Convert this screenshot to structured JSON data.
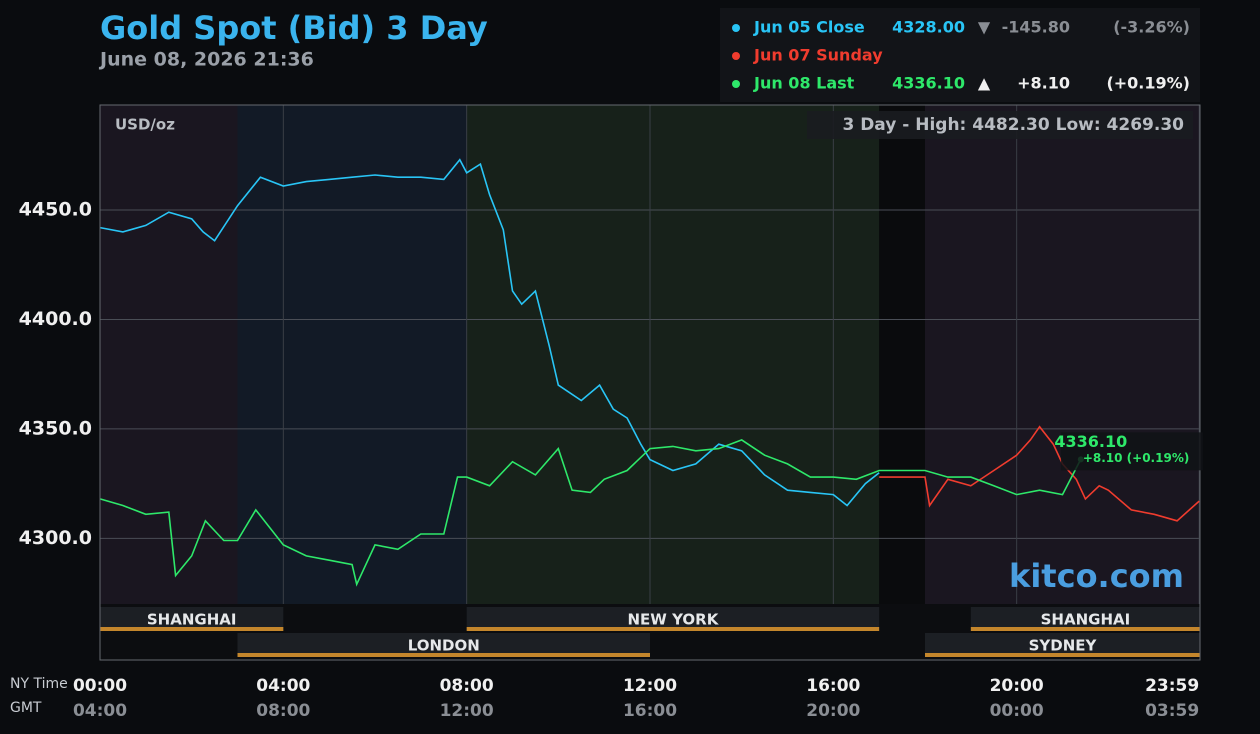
{
  "chart_data": {
    "type": "line",
    "title": "Gold Spot (Bid) 3 Day",
    "subtitle": "June 08, 2026 21:36",
    "y_label": "USD/oz",
    "range_note": "3 Day - High: 4482.30  Low: 4269.30",
    "watermark": "kitco.com",
    "last_label": "4336.10",
    "last_change_label": "+8.10 (+0.19%)",
    "x_row_labels": [
      "NY Time",
      "GMT"
    ],
    "xlim": [
      0,
      24
    ],
    "ylim": [
      4270,
      4498
    ],
    "yticks": [
      {
        "value": 4300,
        "label": "4300.0"
      },
      {
        "value": 4350,
        "label": "4350.0"
      },
      {
        "value": 4400,
        "label": "4400.0"
      },
      {
        "value": 4450,
        "label": "4450.0"
      }
    ],
    "xticks": [
      {
        "value": 0,
        "label": "00:00"
      },
      {
        "value": 4,
        "label": "04:00"
      },
      {
        "value": 8,
        "label": "08:00"
      },
      {
        "value": 12,
        "label": "12:00"
      },
      {
        "value": 16,
        "label": "16:00"
      },
      {
        "value": 20,
        "label": "20:00"
      },
      {
        "value": 23.983,
        "label": "23:59"
      }
    ],
    "xticks_gmt": [
      {
        "value": 0,
        "label": "04:00"
      },
      {
        "value": 4,
        "label": "08:00"
      },
      {
        "value": 8,
        "label": "12:00"
      },
      {
        "value": 12,
        "label": "16:00"
      },
      {
        "value": 16,
        "label": "20:00"
      },
      {
        "value": 20,
        "label": "00:00"
      },
      {
        "value": 23.983,
        "label": "03:59"
      }
    ],
    "grid": true,
    "sessions": [
      "SHANGHAI",
      "LONDON",
      "NEW YORK",
      "SHANGHAI",
      "SYDNEY"
    ],
    "series": [
      {
        "name": "Jun 05 Close",
        "color": "#29c5f6",
        "price_label": "4328.00",
        "arrow": "▼",
        "change_label": "-145.80",
        "pct_label": "(-3.26%)",
        "x": [
          0,
          0.5,
          1,
          1.5,
          2,
          2.25,
          2.5,
          3,
          3.5,
          4,
          4.5,
          5,
          5.5,
          6,
          6.5,
          7,
          7.5,
          7.85,
          8,
          8.3,
          8.5,
          8.8,
          9,
          9.2,
          9.5,
          9.8,
          10,
          10.5,
          10.9,
          11.2,
          11.5,
          11.8,
          12,
          12.5,
          13,
          13.5,
          14,
          14.5,
          15,
          15.5,
          16,
          16.3,
          16.7,
          17
        ],
        "values": [
          4442,
          4440,
          4443,
          4449,
          4446,
          4440,
          4436,
          4452,
          4465,
          4461,
          4463,
          4464,
          4465,
          4466,
          4465,
          4465,
          4464,
          4473,
          4467,
          4471,
          4457,
          4441,
          4413,
          4407,
          4413,
          4388,
          4370,
          4363,
          4370,
          4359,
          4355,
          4343,
          4336,
          4331,
          4334,
          4343,
          4340,
          4329,
          4322,
          4321,
          4320,
          4315,
          4325,
          4330
        ]
      },
      {
        "name": "Jun 07 Sunday",
        "color": "#f03c2e",
        "x": [
          17,
          18,
          18.1,
          18.5,
          19,
          19.5,
          20,
          20.3,
          20.5,
          20.8,
          21,
          21.3,
          21.5,
          21.8,
          22,
          22.5,
          23,
          23.5,
          23.983
        ],
        "values": [
          4328,
          4328,
          4315,
          4327,
          4324,
          4331,
          4338,
          4345,
          4351,
          4343,
          4334,
          4327,
          4318,
          4324,
          4322,
          4313,
          4311,
          4308,
          4317
        ]
      },
      {
        "name": "Jun 08 Last",
        "color": "#2ee86a",
        "price_label": "4336.10",
        "arrow": "▲",
        "change_label": "+8.10",
        "pct_label": "(+0.19%)",
        "x": [
          0,
          0.5,
          1,
          1.5,
          1.65,
          2,
          2.3,
          2.7,
          3,
          3.4,
          4,
          4.5,
          5,
          5.5,
          5.6,
          6,
          6.5,
          7,
          7.5,
          7.8,
          8,
          8.5,
          9,
          9.5,
          10,
          10.3,
          10.7,
          11,
          11.5,
          12,
          12.5,
          13,
          13.5,
          14,
          14.5,
          15,
          15.5,
          16,
          16.5,
          17,
          18,
          18.5,
          19,
          19.5,
          20,
          20.5,
          21,
          21.4
        ],
        "values": [
          4318,
          4315,
          4311,
          4312,
          4283,
          4292,
          4308,
          4299,
          4299,
          4313,
          4297,
          4292,
          4290,
          4288,
          4279,
          4297,
          4295,
          4302,
          4302,
          4328,
          4328,
          4324,
          4335,
          4329,
          4341,
          4322,
          4321,
          4327,
          4331,
          4341,
          4342,
          4340,
          4341,
          4345,
          4338,
          4334,
          4328,
          4328,
          4327,
          4331,
          4331,
          4328,
          4328,
          4324,
          4320,
          4322,
          4320,
          4336.1
        ]
      }
    ]
  }
}
